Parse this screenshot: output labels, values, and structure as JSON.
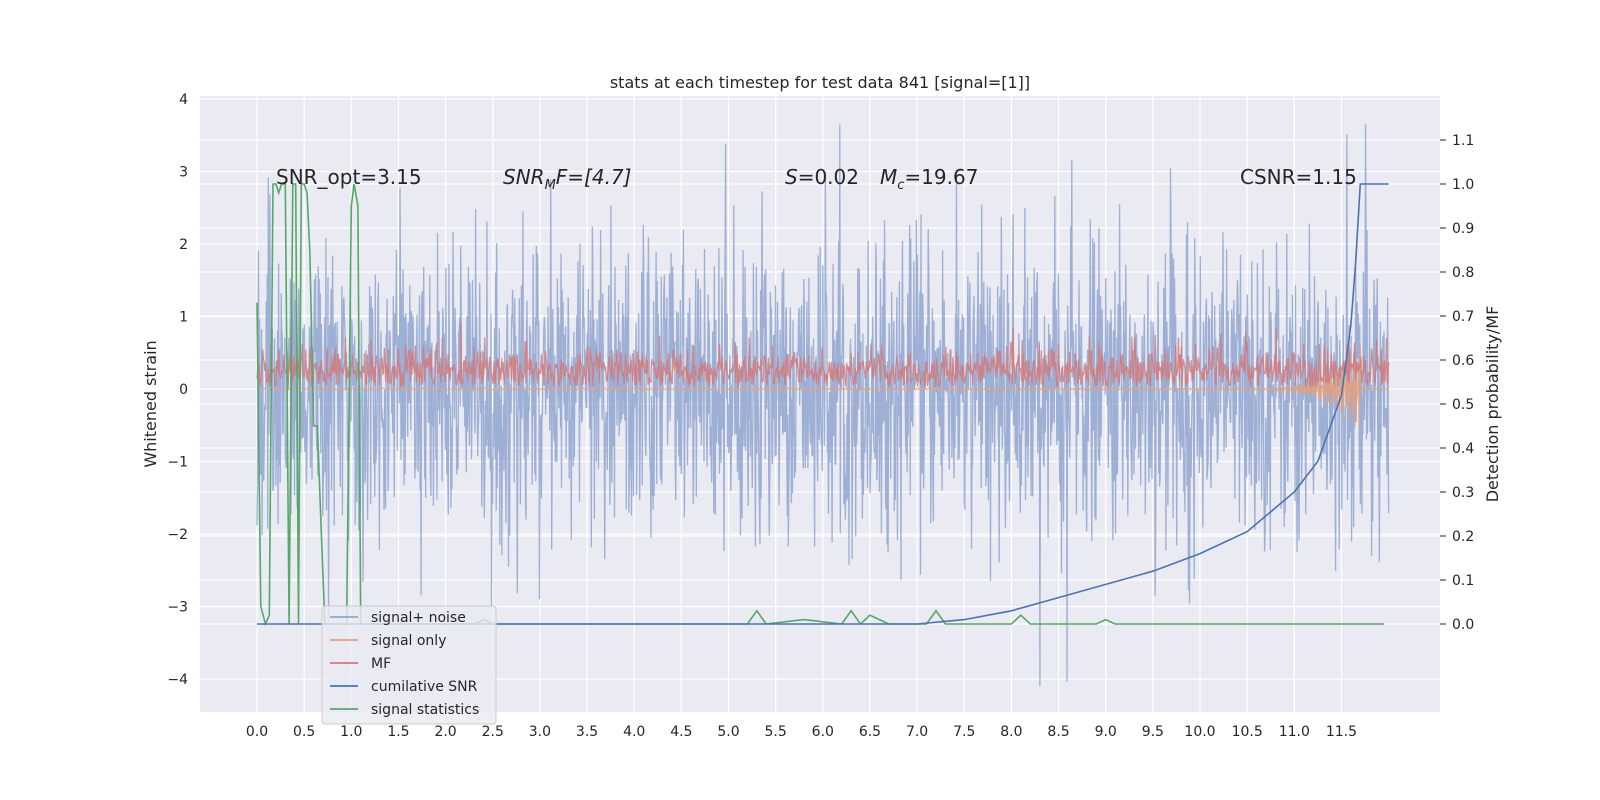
{
  "chart_data": {
    "type": "line",
    "title": "stats at each timestep for test data 841 [signal=[1]]",
    "ylabel": "Whitened strain",
    "ylabel_right": "Detection probability/MF",
    "xlim": [
      -0.5,
      12.6
    ],
    "ylim": [
      -4.45,
      4.05
    ],
    "ylim_right": [
      -0.2,
      1.2
    ],
    "x_ticks": [
      "0.0",
      "0.5",
      "1.0",
      "1.5",
      "2.0",
      "2.5",
      "3.0",
      "3.5",
      "4.0",
      "4.5",
      "5.0",
      "5.5",
      "6.0",
      "6.5",
      "7.0",
      "7.5",
      "8.0",
      "8.5",
      "9.0",
      "9.5",
      "10.0",
      "10.5",
      "11.0",
      "11.5"
    ],
    "y_ticks_left": [
      "−4",
      "−3",
      "−2",
      "−1",
      "0",
      "1",
      "2",
      "3",
      "4"
    ],
    "y_ticks_right": [
      "0.0",
      "0.1",
      "0.2",
      "0.3",
      "0.4",
      "0.5",
      "0.6",
      "0.7",
      "0.8",
      "0.9",
      "1.0",
      "1.1"
    ],
    "grid": true,
    "legend_position": "lower-left",
    "annotations": {
      "snr_opt": "SNR_opt=3.15",
      "snr_mf_base": "SNR",
      "snr_mf_sub": "M",
      "snr_mf_rest": "F=[4.7]",
      "s_letter": "S",
      "s_value": "=0.02",
      "mc_letter": "M",
      "mc_sub": "c",
      "mc_value": "=19.67",
      "csnr": "CSNR=1.15"
    },
    "series": [
      {
        "name": "signal+ noise",
        "color": "#8fa5cf",
        "axis": "left",
        "x_range": [
          0,
          12.0
        ],
        "approx_range": [
          -4.1,
          3.65
        ],
        "typical_range": [
          -2.5,
          2.5
        ]
      },
      {
        "name": "signal only",
        "color": "#e6a07a",
        "axis": "left",
        "x_range": [
          0,
          12.0
        ],
        "approx_range": [
          -0.7,
          0.3
        ]
      },
      {
        "name": "MF",
        "color": "#d27979",
        "axis": "left",
        "x_range": [
          0,
          12.0
        ],
        "approx_range": [
          0,
          1.0
        ]
      },
      {
        "name": "cumilative SNR",
        "color": "#4c72b0",
        "axis": "right",
        "x": [
          0,
          0.2,
          6.0,
          7.0,
          7.5,
          8.0,
          8.5,
          9.0,
          9.5,
          10.0,
          10.5,
          11.0,
          11.25,
          11.5,
          11.6,
          11.65,
          11.7,
          11.75,
          12.0
        ],
        "y": [
          0.0,
          0.0,
          0.0,
          0.0,
          0.01,
          0.03,
          0.06,
          0.09,
          0.12,
          0.16,
          0.21,
          0.3,
          0.37,
          0.52,
          0.68,
          0.82,
          1.0,
          1.0,
          1.0
        ]
      },
      {
        "name": "signal statistics",
        "color": "#55a868",
        "axis": "right",
        "x": [
          0,
          0.04,
          0.09,
          0.13,
          0.17,
          0.2,
          0.23,
          0.26,
          0.3,
          0.34,
          0.38,
          0.41,
          0.44,
          0.47,
          0.5,
          0.53,
          0.56,
          0.6,
          0.64,
          0.68,
          0.72,
          0.76,
          0.8,
          0.85,
          0.9,
          0.95,
          1.0,
          1.03,
          1.07,
          1.1,
          1.13,
          1.17,
          1.21,
          1.26,
          1.3,
          2.0,
          2.3,
          2.4,
          2.5,
          2.6,
          3.5,
          5.2,
          5.3,
          5.4,
          5.8,
          6.2,
          6.3,
          6.4,
          6.5,
          6.6,
          6.7,
          7.1,
          7.2,
          7.3,
          7.6,
          8.0,
          8.1,
          8.2,
          8.9,
          9.0,
          9.1,
          10.0,
          11.0,
          11.5,
          11.8,
          11.95
        ],
        "y": [
          0.73,
          0.04,
          0.0,
          0.02,
          1.0,
          1.0,
          0.98,
          1.0,
          1.0,
          0.0,
          1.0,
          1.0,
          0.0,
          1.0,
          1.0,
          0.98,
          0.85,
          0.45,
          0.45,
          0.22,
          0.0,
          0.0,
          0.0,
          0.0,
          0.0,
          0.0,
          0.95,
          1.0,
          0.95,
          0.0,
          0.0,
          0.0,
          0.0,
          0.0,
          0.0,
          0.0,
          0.0,
          0.01,
          0.0,
          0.0,
          0.0,
          0.0,
          0.03,
          0.0,
          0.01,
          0.0,
          0.03,
          0.0,
          0.02,
          0.01,
          0.0,
          0.0,
          0.03,
          0.0,
          0.0,
          0.0,
          0.02,
          0.0,
          0.0,
          0.01,
          0.0,
          0.0,
          0.0,
          0.0,
          0.0,
          0.0
        ]
      }
    ]
  }
}
